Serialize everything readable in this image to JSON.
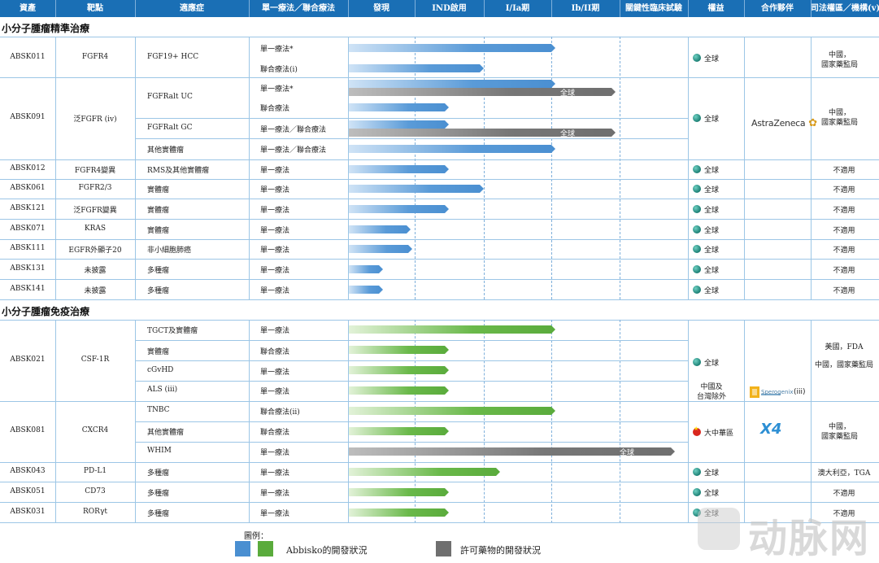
{
  "header": [
    "資產",
    "靶點",
    "適應症",
    "單一療法／聯合療法",
    "發現",
    "IND啟用",
    "I/Ia期",
    "Ib/II期",
    "關鍵性臨床試驗",
    "權益",
    "合作夥伴",
    "司法權區／機構(v)"
  ],
  "sections": {
    "precision": "小分子腫瘤精準治療",
    "immuno": "小分子腫瘤免疫治療"
  },
  "rows": [
    {
      "id": "ABSK011",
      "asset": "ABSK011",
      "target": "FGFR4",
      "indications": [
        "FGF19+ HCC",
        ""
      ],
      "therapies": [
        "單一療法*",
        "聯合療法(i)"
      ],
      "rights": "全球",
      "partner": "",
      "jurisdiction": "中國，\n國家藥監局"
    },
    {
      "id": "ABSK091",
      "asset": "ABSK091",
      "target": "泛FGFR (iv)",
      "indications": [
        "FGFRalt UC",
        "",
        "FGFRalt GC",
        "其他實體瘤"
      ],
      "therapies": [
        "單一療法*",
        "聯合療法",
        "單一療法／聯合療法",
        "單一療法／聯合療法"
      ],
      "rights": "全球",
      "partner": "AstraZeneca",
      "jurisdiction": "中國，\n國家藥監局"
    },
    {
      "id": "ABSK012",
      "asset": "ABSK012",
      "target": "FGFR4變異",
      "indication": "RMS及其他實體瘤",
      "therapy": "單一療法",
      "rights": "全球",
      "jurisdiction": "不適用"
    },
    {
      "id": "ABSK061",
      "asset": "ABSK061",
      "target": "FGFR2/3",
      "indication": "實體瘤",
      "therapy": "單一療法",
      "rights": "全球",
      "jurisdiction": "不適用"
    },
    {
      "id": "ABSK121",
      "asset": "ABSK121",
      "target": "泛FGFR變異",
      "indication": "實體瘤",
      "therapy": "單一療法",
      "rights": "全球",
      "jurisdiction": "不適用"
    },
    {
      "id": "ABSK071",
      "asset": "ABSK071",
      "target": "KRAS",
      "indication": "實體瘤",
      "therapy": "單一療法",
      "rights": "全球",
      "jurisdiction": "不適用"
    },
    {
      "id": "ABSK111",
      "asset": "ABSK111",
      "target": "EGFR外顯子20",
      "indication": "非小細胞肺癌",
      "therapy": "單一療法",
      "rights": "全球",
      "jurisdiction": "不適用"
    },
    {
      "id": "ABSK131",
      "asset": "ABSK131",
      "target": "未披露",
      "indication": "多種瘤",
      "therapy": "單一療法",
      "rights": "全球",
      "jurisdiction": "不適用"
    },
    {
      "id": "ABSK141",
      "asset": "ABSK141",
      "target": "未披露",
      "indication": "多種瘤",
      "therapy": "單一療法",
      "rights": "全球",
      "jurisdiction": "不適用"
    },
    {
      "id": "ABSK021",
      "asset": "ABSK021",
      "target": "CSF-1R",
      "indications": [
        "TGCT及實體瘤",
        "實體瘤",
        "cGvHD",
        "ALS (iii)"
      ],
      "therapies": [
        "單一療法",
        "聯合療法",
        "單一療法",
        "單一療法"
      ],
      "rights": "全球",
      "rights2": "中國及\n台灣除外",
      "partner": "Sperogenix",
      "partner_note": "(iii)",
      "jurisdiction": "美國，FDA",
      "jurisdiction2": "中國，國家藥監局"
    },
    {
      "id": "ABSK081",
      "asset": "ABSK081",
      "target": "CXCR4",
      "indications": [
        "TNBC",
        "其他實體瘤",
        "WHIM"
      ],
      "therapies": [
        "聯合療法(ii)",
        "聯合療法",
        "單一療法"
      ],
      "rights": "大中華區",
      "partner": "X4",
      "jurisdiction": "中國，\n國家藥監局"
    },
    {
      "id": "ABSK043",
      "asset": "ABSK043",
      "target": "PD-L1",
      "indication": "多種瘤",
      "therapy": "單一療法",
      "rights": "全球",
      "jurisdiction": "澳大利亞，TGA"
    },
    {
      "id": "ABSK051",
      "asset": "ABSK051",
      "target": "CD73",
      "indication": "多種瘤",
      "therapy": "單一療法",
      "rights": "全球",
      "jurisdiction": "不適用"
    },
    {
      "id": "ABSK031",
      "asset": "ABSK031",
      "target": "RORγt",
      "indication": "多種瘤",
      "therapy": "單一療法",
      "rights": "全球",
      "jurisdiction": "不適用"
    }
  ],
  "bar_labels": {
    "global": "全球"
  },
  "legend": {
    "title": "圖例：",
    "abbisko": "Abbisko的開發狀況",
    "licensed": "許可藥物的開發狀況"
  },
  "watermark": {
    "text": "动脉网"
  },
  "colors": {
    "header": "#1a6fb5",
    "blue": "#4a8fd1",
    "green": "#5aab3c",
    "gray": "#6f6f6f"
  }
}
